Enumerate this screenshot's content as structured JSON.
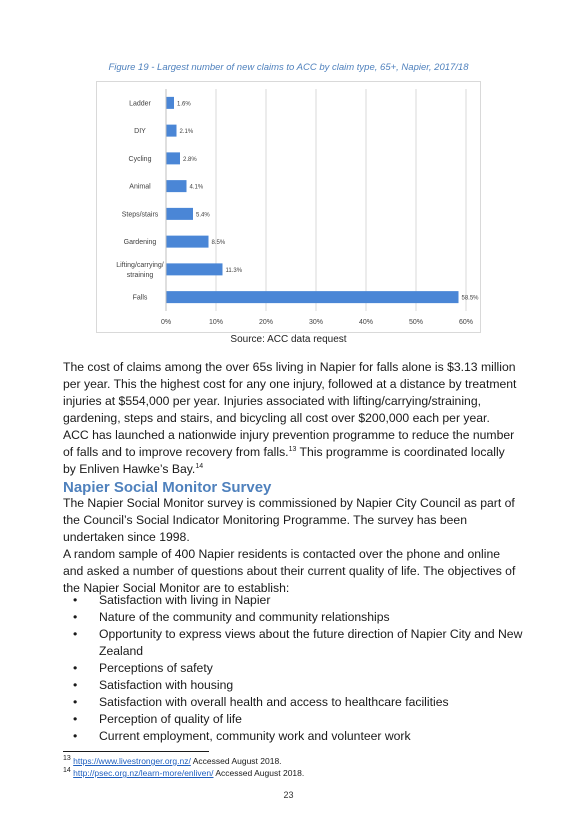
{
  "figure": {
    "caption": "Figure 19 - Largest number of new claims to ACC by claim type, 65+, Napier, 2017/18",
    "source": "Source: ACC data request"
  },
  "chart_data": {
    "type": "bar",
    "orientation": "horizontal",
    "categories": [
      "Ladder",
      "DIY",
      "Cycling",
      "Animal",
      "Steps/stairs",
      "Gardening",
      "Lifting/carrying/ straining",
      "Falls"
    ],
    "category_lines": [
      [
        "Ladder"
      ],
      [
        "DIY"
      ],
      [
        "Cycling"
      ],
      [
        "Animal"
      ],
      [
        "Steps/stairs"
      ],
      [
        "Gardening"
      ],
      [
        "Lifting/carrying/",
        "straining"
      ],
      [
        "Falls"
      ]
    ],
    "values": [
      1.6,
      2.1,
      2.8,
      4.1,
      5.4,
      8.5,
      11.3,
      58.5
    ],
    "data_labels": [
      "1.6%",
      "2.1%",
      "2.8%",
      "4.1%",
      "5.4%",
      "8.5%",
      "11.3%",
      "58.5%"
    ],
    "xlim": [
      0,
      60
    ],
    "x_ticks": [
      0,
      10,
      20,
      30,
      40,
      50,
      60
    ],
    "x_tick_labels": [
      "0%",
      "10%",
      "20%",
      "30%",
      "40%",
      "50%",
      "60%"
    ],
    "grid": "vertical",
    "bar_color": "#4a86d6",
    "legend": "none"
  },
  "para1": {
    "text": "The cost of claims among the over 65s living in Napier for falls alone is $3.13 million per year.  This the highest cost for any one injury, followed at a distance by treatment injuries at $554,000 per year. Injuries associated with lifting/carrying/straining, gardening, steps and stairs, and bicycling all cost over $200,000 each per year."
  },
  "para2": {
    "part1": "ACC has launched a nationwide injury prevention programme to reduce the number of falls and to improve recovery from falls.",
    "ref1": "13",
    "part2": " This programme is coordinated locally by Enliven Hawke’s Bay.",
    "ref2": "14"
  },
  "section": {
    "heading": "Napier Social Monitor Survey",
    "para3": "The Napier Social Monitor survey is commissioned by Napier City Council as part of the Council’s Social Indicator Monitoring Programme. The survey has been undertaken since 1998.",
    "para4": "A random sample of 400 Napier residents is contacted over the phone and online and asked a number of questions about their current quality of life. The objectives of the Napier Social Monitor are to establish:",
    "bullet_glyph": "•",
    "objectives": [
      "Satisfaction with living in Napier",
      "Nature of the community and community relationships",
      "Opportunity to express views about the future direction of Napier City and New Zealand",
      "Perceptions of safety",
      "Satisfaction with housing",
      "Satisfaction with overall health and access to healthcare facilities",
      "Perception of quality of life",
      "Current employment, community work and volunteer work"
    ]
  },
  "footnotes": [
    {
      "num": "13",
      "link": "https://www.livestronger.org.nz/",
      "rest": " Accessed August 2018."
    },
    {
      "num": "14",
      "link": "http://psec.org.nz/learn-more/enliven/",
      "rest": " Accessed August 2018."
    }
  ],
  "page_number": "23"
}
